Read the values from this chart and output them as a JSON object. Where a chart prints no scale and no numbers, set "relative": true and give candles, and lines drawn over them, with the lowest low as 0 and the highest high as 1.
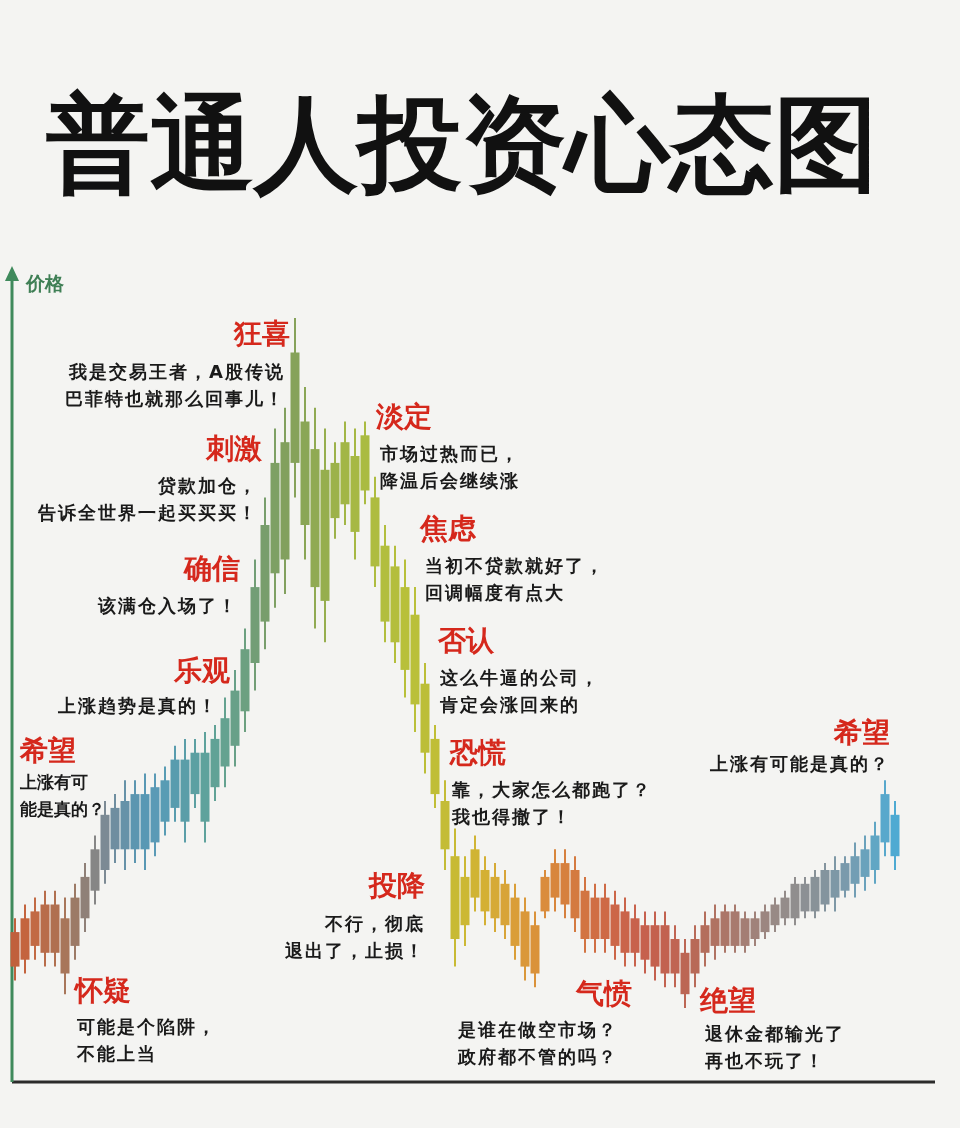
{
  "chart_data": {
    "type": "candlestick",
    "title": "普通人投资心态图",
    "ylabel": "价格",
    "relative": true,
    "categories": [
      null,
      null,
      null,
      null,
      null,
      null,
      null,
      null,
      null,
      null,
      null,
      null,
      null,
      null,
      null,
      null,
      null,
      null,
      null,
      null,
      null,
      null,
      null,
      null,
      null,
      null,
      null,
      null,
      null,
      null,
      null,
      null,
      null,
      null,
      null,
      null,
      null,
      null,
      null,
      null,
      null,
      null,
      null,
      null,
      null,
      null,
      null,
      null,
      null,
      null,
      null,
      null,
      null,
      null,
      null,
      null,
      null,
      null,
      null,
      null,
      null,
      null,
      null,
      null,
      null,
      null,
      null,
      null,
      null,
      null,
      null,
      null,
      null,
      null,
      null,
      null,
      null,
      null,
      null,
      null,
      null,
      null,
      null,
      null,
      null,
      null,
      null,
      null,
      null
    ],
    "ohlc": [
      [
        0.06,
        0.13,
        0.04,
        0.11
      ],
      [
        0.13,
        0.15,
        0.05,
        0.07
      ],
      [
        0.09,
        0.16,
        0.07,
        0.14
      ],
      [
        0.15,
        0.17,
        0.06,
        0.08
      ],
      [
        0.08,
        0.17,
        0.06,
        0.15
      ],
      [
        0.13,
        0.16,
        0.02,
        0.05
      ],
      [
        0.09,
        0.18,
        0.07,
        0.16
      ],
      [
        0.13,
        0.21,
        0.11,
        0.19
      ],
      [
        0.17,
        0.25,
        0.15,
        0.23
      ],
      [
        0.2,
        0.3,
        0.18,
        0.28
      ],
      [
        0.23,
        0.31,
        0.21,
        0.29
      ],
      [
        0.3,
        0.33,
        0.2,
        0.23
      ],
      [
        0.23,
        0.33,
        0.21,
        0.31
      ],
      [
        0.31,
        0.34,
        0.2,
        0.23
      ],
      [
        0.24,
        0.34,
        0.22,
        0.32
      ],
      [
        0.27,
        0.35,
        0.25,
        0.33
      ],
      [
        0.29,
        0.38,
        0.27,
        0.36
      ],
      [
        0.36,
        0.39,
        0.24,
        0.27
      ],
      [
        0.31,
        0.39,
        0.29,
        0.37
      ],
      [
        0.37,
        0.4,
        0.24,
        0.27
      ],
      [
        0.32,
        0.41,
        0.3,
        0.39
      ],
      [
        0.35,
        0.45,
        0.32,
        0.42
      ],
      [
        0.38,
        0.49,
        0.35,
        0.46
      ],
      [
        0.43,
        0.55,
        0.4,
        0.52
      ],
      [
        0.5,
        0.65,
        0.46,
        0.61
      ],
      [
        0.56,
        0.74,
        0.52,
        0.7
      ],
      [
        0.63,
        0.84,
        0.58,
        0.79
      ],
      [
        0.82,
        0.87,
        0.6,
        0.65
      ],
      [
        0.79,
        1.0,
        0.74,
        0.95
      ],
      [
        0.85,
        0.9,
        0.65,
        0.7
      ],
      [
        0.81,
        0.87,
        0.55,
        0.61
      ],
      [
        0.78,
        0.84,
        0.53,
        0.59
      ],
      [
        0.71,
        0.82,
        0.68,
        0.79
      ],
      [
        0.73,
        0.85,
        0.7,
        0.82
      ],
      [
        0.8,
        0.84,
        0.65,
        0.69
      ],
      [
        0.75,
        0.85,
        0.73,
        0.83
      ],
      [
        0.74,
        0.77,
        0.61,
        0.64
      ],
      [
        0.67,
        0.7,
        0.53,
        0.56
      ],
      [
        0.64,
        0.67,
        0.5,
        0.53
      ],
      [
        0.61,
        0.65,
        0.45,
        0.49
      ],
      [
        0.57,
        0.61,
        0.4,
        0.44
      ],
      [
        0.47,
        0.5,
        0.34,
        0.37
      ],
      [
        0.39,
        0.41,
        0.29,
        0.31
      ],
      [
        0.3,
        0.33,
        0.2,
        0.23
      ],
      [
        0.22,
        0.26,
        0.06,
        0.1
      ],
      [
        0.12,
        0.22,
        0.09,
        0.19
      ],
      [
        0.16,
        0.25,
        0.14,
        0.23
      ],
      [
        0.2,
        0.22,
        0.12,
        0.14
      ],
      [
        0.19,
        0.21,
        0.11,
        0.13
      ],
      [
        0.18,
        0.2,
        0.1,
        0.12
      ],
      [
        0.16,
        0.18,
        0.07,
        0.09
      ],
      [
        0.14,
        0.16,
        0.04,
        0.06
      ],
      [
        0.12,
        0.14,
        0.03,
        0.05
      ],
      [
        0.14,
        0.2,
        0.13,
        0.19
      ],
      [
        0.16,
        0.23,
        0.14,
        0.21
      ],
      [
        0.21,
        0.23,
        0.13,
        0.15
      ],
      [
        0.2,
        0.22,
        0.11,
        0.13
      ],
      [
        0.17,
        0.19,
        0.08,
        0.1
      ],
      [
        0.1,
        0.18,
        0.08,
        0.16
      ],
      [
        0.16,
        0.18,
        0.08,
        0.1
      ],
      [
        0.15,
        0.17,
        0.07,
        0.09
      ],
      [
        0.14,
        0.16,
        0.06,
        0.08
      ],
      [
        0.08,
        0.15,
        0.06,
        0.13
      ],
      [
        0.12,
        0.14,
        0.05,
        0.07
      ],
      [
        0.12,
        0.14,
        0.04,
        0.06
      ],
      [
        0.12,
        0.14,
        0.03,
        0.05
      ],
      [
        0.1,
        0.12,
        0.03,
        0.05
      ],
      [
        0.08,
        0.1,
        0,
        0.02
      ],
      [
        0.05,
        0.12,
        0.03,
        0.1
      ],
      [
        0.08,
        0.14,
        0.06,
        0.12
      ],
      [
        0.09,
        0.15,
        0.07,
        0.13
      ],
      [
        0.14,
        0.15,
        0.08,
        0.09
      ],
      [
        0.09,
        0.15,
        0.08,
        0.14
      ],
      [
        0.13,
        0.14,
        0.08,
        0.09
      ],
      [
        0.1,
        0.14,
        0.09,
        0.13
      ],
      [
        0.11,
        0.15,
        0.1,
        0.14
      ],
      [
        0.12,
        0.16,
        0.11,
        0.15
      ],
      [
        0.13,
        0.17,
        0.12,
        0.16
      ],
      [
        0.13,
        0.19,
        0.12,
        0.18
      ],
      [
        0.18,
        0.19,
        0.13,
        0.14
      ],
      [
        0.14,
        0.2,
        0.13,
        0.19
      ],
      [
        0.15,
        0.21,
        0.14,
        0.2
      ],
      [
        0.16,
        0.22,
        0.14,
        0.2
      ],
      [
        0.21,
        0.22,
        0.16,
        0.17
      ],
      [
        0.18,
        0.24,
        0.16,
        0.22
      ],
      [
        0.19,
        0.25,
        0.17,
        0.23
      ],
      [
        0.2,
        0.27,
        0.18,
        0.25
      ],
      [
        0.24,
        0.33,
        0.22,
        0.31
      ],
      [
        0.28,
        0.3,
        0.2,
        0.22
      ]
    ],
    "colors": [
      "#c0603c",
      "#c4643e",
      "#c26a44",
      "#b86c4a",
      "#b07050",
      "#a8765a",
      "#9c7a66",
      "#8f8078",
      "#868686",
      "#7c8a94",
      "#6f8ea0",
      "#6692a8",
      "#5c96b0",
      "#5898b4",
      "#5a9ab6",
      "#589cb4",
      "#589cae",
      "#5a9ea8",
      "#5ca0a2",
      "#5ea29c",
      "#60a296",
      "#64a290",
      "#68a088",
      "#6ca080",
      "#729e76",
      "#789e6c",
      "#7ea064",
      "#82a05e",
      "#86a25a",
      "#8aa656",
      "#90aa52",
      "#96ae4e",
      "#9cb24a",
      "#a2b646",
      "#a6b844",
      "#aabb42",
      "#aebc40",
      "#b2be3e",
      "#b4be3c",
      "#b8c03a",
      "#bac03a",
      "#bcbe38",
      "#c0be36",
      "#c4bc36",
      "#c8ba34",
      "#ccb834",
      "#d0b434",
      "#d4b034",
      "#d6aa36",
      "#d8a438",
      "#da9e38",
      "#da983a",
      "#da923a",
      "#da8c3c",
      "#d8863c",
      "#d6803e",
      "#d47a40",
      "#d27442",
      "#d06e44",
      "#ce6a46",
      "#cc6648",
      "#ca644a",
      "#c8624c",
      "#c6604e",
      "#c4604e",
      "#c26250",
      "#c06452",
      "#bc6654",
      "#b86a58",
      "#b46e5c",
      "#b07262",
      "#ac7668",
      "#a87a6e",
      "#a47e74",
      "#a0827a",
      "#9c8680",
      "#988a86",
      "#948c8a",
      "#908e8e",
      "#8c9094",
      "#889298",
      "#84949e",
      "#7e98a6",
      "#7a9aac",
      "#729eb4",
      "#6aa2bc",
      "#60a6c4",
      "#58a8cc",
      "#4eaad2"
    ],
    "annotations": [
      "狂喜",
      "我是交易王者，A股传说巴菲特也就那么回事儿！",
      "刺激",
      "贷款加仓，告诉全世界一起买买买！",
      "确信",
      "该满仓入场了！",
      "乐观",
      "上涨趋势是真的！",
      "希望",
      "上涨有可能是真的？",
      "怀疑",
      "可能是个陷阱，不能上当",
      "淡定",
      "市场过热而已，降温后会继续涨",
      "焦虑",
      "当初不贷款就好了，回调幅度有点大",
      "否认",
      "这么牛逼的公司，肯定会涨回来的",
      "恐慌",
      "靠，大家怎么都跑了？我也得撤了！",
      "投降",
      "不行，彻底退出了，止损！",
      "气愤",
      "是谁在做空市场？政府都不管的吗？",
      "绝望",
      "退休金都输光了再也不玩了！",
      "希望",
      "上涨有可能是真的？"
    ]
  }
}
